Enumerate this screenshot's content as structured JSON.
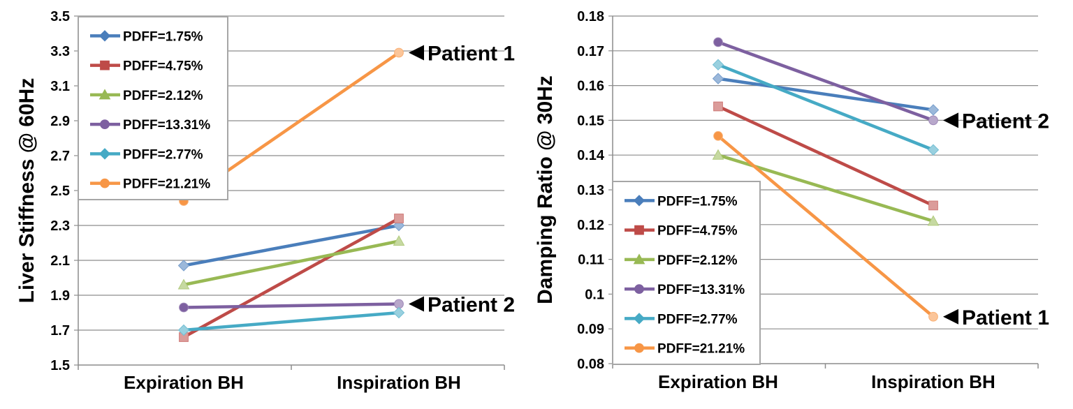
{
  "chart_data": [
    {
      "type": "line",
      "ylabel": "Liver Stiffness @ 60Hz",
      "categories": [
        "Expiration BH",
        "Inspiration BH"
      ],
      "ylim": [
        1.5,
        3.5
      ],
      "yticks": [
        "1.5",
        "1.7",
        "1.9",
        "2.1",
        "2.3",
        "2.5",
        "2.7",
        "2.9",
        "3.1",
        "3.3",
        "3.5"
      ],
      "grid": true,
      "legend_position": "top-left",
      "series": [
        {
          "name": "PDFF=1.75%",
          "values": [
            2.07,
            2.3
          ],
          "color": "#4a7ebb",
          "marker": "diamond"
        },
        {
          "name": "PDFF=4.75%",
          "values": [
            1.66,
            2.34
          ],
          "color": "#be4b48",
          "marker": "square"
        },
        {
          "name": "PDFF=2.12%",
          "values": [
            1.96,
            2.21
          ],
          "color": "#98b954",
          "marker": "triangle"
        },
        {
          "name": "PDFF=13.31%",
          "values": [
            1.83,
            1.85
          ],
          "color": "#7d60a0",
          "marker": "circle"
        },
        {
          "name": "PDFF=2.77%",
          "values": [
            1.7,
            1.8
          ],
          "color": "#46aac5",
          "marker": "diamond"
        },
        {
          "name": "PDFF=21.21%",
          "values": [
            2.44,
            3.29
          ],
          "color": "#f79646",
          "marker": "circle"
        }
      ],
      "annotations": [
        {
          "text": "Patient 1",
          "category": "Inspiration BH",
          "y": 3.29
        },
        {
          "text": "Patient 2",
          "category": "Inspiration BH",
          "y": 1.85
        }
      ]
    },
    {
      "type": "line",
      "ylabel": "Damping Ratio @ 30Hz",
      "categories": [
        "Expiration BH",
        "Inspiration BH"
      ],
      "ylim": [
        0.08,
        0.18
      ],
      "yticks": [
        "0.08",
        "0.09",
        "0.1",
        "0.11",
        "0.12",
        "0.13",
        "0.14",
        "0.15",
        "0.16",
        "0.17",
        "0.18"
      ],
      "grid": true,
      "legend_position": "bottom-left",
      "series": [
        {
          "name": "PDFF=1.75%",
          "values": [
            0.162,
            0.153
          ],
          "color": "#4a7ebb",
          "marker": "diamond"
        },
        {
          "name": "PDFF=4.75%",
          "values": [
            0.154,
            0.1255
          ],
          "color": "#be4b48",
          "marker": "square"
        },
        {
          "name": "PDFF=2.12%",
          "values": [
            0.14,
            0.121
          ],
          "color": "#98b954",
          "marker": "triangle"
        },
        {
          "name": "PDFF=13.31%",
          "values": [
            0.1725,
            0.15
          ],
          "color": "#7d60a0",
          "marker": "circle"
        },
        {
          "name": "PDFF=2.77%",
          "values": [
            0.166,
            0.1415
          ],
          "color": "#46aac5",
          "marker": "diamond"
        },
        {
          "name": "PDFF=21.21%",
          "values": [
            0.1455,
            0.0935
          ],
          "color": "#f79646",
          "marker": "circle"
        }
      ],
      "annotations": [
        {
          "text": "Patient 2",
          "category": "Inspiration BH",
          "y": 0.15
        },
        {
          "text": "Patient 1",
          "category": "Inspiration BH",
          "y": 0.0935
        }
      ]
    }
  ]
}
